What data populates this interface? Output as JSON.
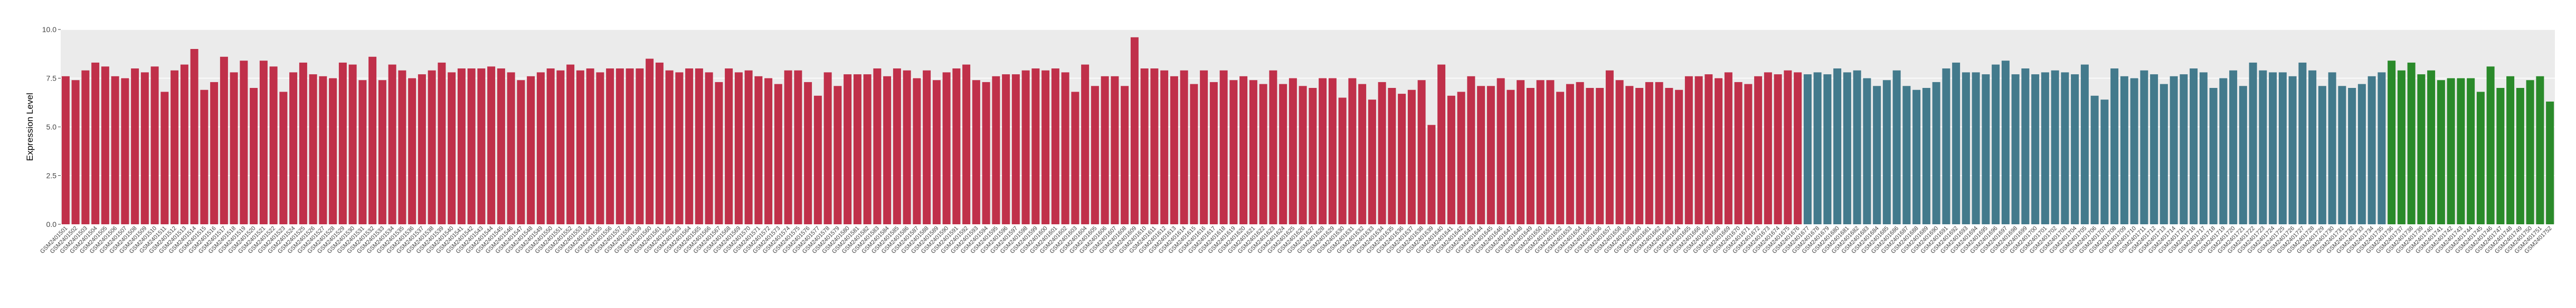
{
  "chart_data": {
    "type": "bar",
    "y_label": "Expression Level",
    "ylim": [
      0,
      10
    ],
    "yticks": [
      {
        "value": 0,
        "label": "0.0"
      },
      {
        "value": 2.5,
        "label": "2.5"
      },
      {
        "value": 5,
        "label": "5.0"
      },
      {
        "value": 7.5,
        "label": "7.5"
      },
      {
        "value": 10,
        "label": "10.0"
      }
    ],
    "grid": true,
    "groups": [
      {
        "color": "#c0304a",
        "categories": [
          "GSM2401501",
          "GSM2401502",
          "GSM2401503",
          "GSM2401504",
          "GSM2401505",
          "GSM2401506",
          "GSM2401507",
          "GSM2401508",
          "GSM2401509",
          "GSM2401510",
          "GSM2401511",
          "GSM2401512",
          "GSM2401513",
          "GSM2401514",
          "GSM2401515",
          "GSM2401516",
          "GSM2401517",
          "GSM2401518",
          "GSM2401519",
          "GSM2401520",
          "GSM2401521",
          "GSM2401522",
          "GSM2401523",
          "GSM2401524",
          "GSM2401525",
          "GSM2401526",
          "GSM2401527",
          "GSM2401528",
          "GSM2401529",
          "GSM2401530",
          "GSM2401531",
          "GSM2401532",
          "GSM2401533",
          "GSM2401534",
          "GSM2401535",
          "GSM2401536",
          "GSM2401537",
          "GSM2401538",
          "GSM2401539",
          "GSM2401540",
          "GSM2401541",
          "GSM2401542",
          "GSM2401543",
          "GSM2401544",
          "GSM2401545",
          "GSM2401546",
          "GSM2401547",
          "GSM2401548",
          "GSM2401549",
          "GSM2401550",
          "GSM2401551",
          "GSM2401552",
          "GSM2401553",
          "GSM2401554",
          "GSM2401555",
          "GSM2401556",
          "GSM2401557",
          "GSM2401558",
          "GSM2401559",
          "GSM2401560",
          "GSM2401561",
          "GSM2401562",
          "GSM2401563",
          "GSM2401564",
          "GSM2401565",
          "GSM2401566",
          "GSM2401567",
          "GSM2401568",
          "GSM2401569",
          "GSM2401570",
          "GSM2401571",
          "GSM2401572",
          "GSM2401573",
          "GSM2401574",
          "GSM2401575",
          "GSM2401576",
          "GSM2401577",
          "GSM2401578",
          "GSM2401579",
          "GSM2401580",
          "GSM2401581",
          "GSM2401582",
          "GSM2401583",
          "GSM2401584",
          "GSM2401585",
          "GSM2401586",
          "GSM2401587",
          "GSM2401588",
          "GSM2401589",
          "GSM2401590",
          "GSM2401591",
          "GSM2401592",
          "GSM2401593",
          "GSM2401594",
          "GSM2401595",
          "GSM2401596",
          "GSM2401597",
          "GSM2401598",
          "GSM2401599",
          "GSM2401600",
          "GSM2401601",
          "GSM2401602",
          "GSM2401603",
          "GSM2401604",
          "GSM2401605",
          "GSM2401606",
          "GSM2401607",
          "GSM2401608",
          "GSM2401609",
          "GSM2401610",
          "GSM2401611",
          "GSM2401612",
          "GSM2401613",
          "GSM2401614",
          "GSM2401615",
          "GSM2401616",
          "GSM2401617",
          "GSM2401618",
          "GSM2401619",
          "GSM2401620",
          "GSM2401621",
          "GSM2401622",
          "GSM2401623",
          "GSM2401624",
          "GSM2401625",
          "GSM2401626",
          "GSM2401627",
          "GSM2401628",
          "GSM2401629",
          "GSM2401630",
          "GSM2401631",
          "GSM2401632",
          "GSM2401633",
          "GSM2401634",
          "GSM2401635",
          "GSM2401636",
          "GSM2401637",
          "GSM2401638",
          "GSM2401639",
          "GSM2401640",
          "GSM2401641",
          "GSM2401642",
          "GSM2401643",
          "GSM2401644",
          "GSM2401645",
          "GSM2401646",
          "GSM2401647",
          "GSM2401648",
          "GSM2401649",
          "GSM2401650",
          "GSM2401651",
          "GSM2401652",
          "GSM2401653",
          "GSM2401654",
          "GSM2401655",
          "GSM2401656",
          "GSM2401657",
          "GSM2401658",
          "GSM2401659",
          "GSM2401660",
          "GSM2401661",
          "GSM2401662",
          "GSM2401663",
          "GSM2401664",
          "GSM2401665",
          "GSM2401666",
          "GSM2401667",
          "GSM2401668",
          "GSM2401669",
          "GSM2401670",
          "GSM2401671",
          "GSM2401672",
          "GSM2401673",
          "GSM2401674",
          "GSM2401675",
          "GSM2401676"
        ],
        "values": [
          7.6,
          7.4,
          7.9,
          8.3,
          8.1,
          7.6,
          7.5,
          8.0,
          7.8,
          8.1,
          6.8,
          7.9,
          8.2,
          9.0,
          6.9,
          7.3,
          8.6,
          7.8,
          8.4,
          7.0,
          8.4,
          8.1,
          6.8,
          7.8,
          8.3,
          7.7,
          7.6,
          7.5,
          8.3,
          8.2,
          7.4,
          8.6,
          7.4,
          8.2,
          7.9,
          7.5,
          7.7,
          7.9,
          8.3,
          7.8,
          8.0,
          8.0,
          8.0,
          8.1,
          8.0,
          7.8,
          7.4,
          7.6,
          7.8,
          8.0,
          7.9,
          8.2,
          7.9,
          8.0,
          7.8,
          8.0,
          8.0,
          8.0,
          8.0,
          8.5,
          8.3,
          7.9,
          7.8,
          8.0,
          8.0,
          7.8,
          7.3,
          8.0,
          7.8,
          7.9,
          7.6,
          7.5,
          7.2,
          7.9,
          7.9,
          7.3,
          6.6,
          7.8,
          7.1,
          7.7,
          7.7,
          7.7,
          8.0,
          7.6,
          8.0,
          7.9,
          7.5,
          7.9,
          7.4,
          7.8,
          8.0,
          8.2,
          7.4,
          7.3,
          7.6,
          7.7,
          7.7,
          7.9,
          8.0,
          7.9,
          8.0,
          7.8,
          6.8,
          8.2,
          7.1,
          7.6,
          7.6,
          7.1,
          9.6,
          8.0,
          8.0,
          7.9,
          7.6,
          7.9,
          7.2,
          7.9,
          7.3,
          7.9,
          7.4,
          7.6,
          7.4,
          7.2,
          7.9,
          7.2,
          7.5,
          7.1,
          7.0,
          7.5,
          7.5,
          6.5,
          7.5,
          7.2,
          6.4,
          7.3,
          7.0,
          6.7,
          6.9,
          7.4,
          5.1,
          8.2,
          6.6,
          6.8,
          7.6,
          7.1,
          7.1,
          7.5,
          6.9,
          7.4,
          7.0,
          7.4,
          7.4,
          6.8,
          7.2,
          7.3,
          7.0,
          7.0,
          7.9,
          7.4,
          7.1,
          7.0,
          7.3,
          7.3,
          7.0,
          6.9,
          7.6,
          7.6,
          7.7,
          7.5,
          7.8,
          7.3,
          7.2,
          7.6,
          7.8,
          7.7,
          7.9,
          7.8
        ]
      },
      {
        "color": "#437a8c",
        "categories": [
          "GSM2401677",
          "GSM2401678",
          "GSM2401679",
          "GSM2401680",
          "GSM2401681",
          "GSM2401682",
          "GSM2401683",
          "GSM2401684",
          "GSM2401685",
          "GSM2401686",
          "GSM2401687",
          "GSM2401688",
          "GSM2401689",
          "GSM2401690",
          "GSM2401691",
          "GSM2401692",
          "GSM2401693",
          "GSM2401694",
          "GSM2401695",
          "GSM2401696",
          "GSM2401697",
          "GSM2401698",
          "GSM2401699",
          "GSM2401700",
          "GSM2401701",
          "GSM2401702",
          "GSM2401703",
          "GSM2401704",
          "GSM2401705",
          "GSM2401706",
          "GSM2401707",
          "GSM2401708",
          "GSM2401709",
          "GSM2401710",
          "GSM2401711",
          "GSM2401712",
          "GSM2401713",
          "GSM2401714",
          "GSM2401715",
          "GSM2401716",
          "GSM2401717",
          "GSM2401718",
          "GSM2401719",
          "GSM2401720",
          "GSM2401721",
          "GSM2401722",
          "GSM2401723",
          "GSM2401724",
          "GSM2401725",
          "GSM2401726",
          "GSM2401727",
          "GSM2401728",
          "GSM2401729",
          "GSM2401730",
          "GSM2401731",
          "GSM2401732",
          "GSM2401733",
          "GSM2401734",
          "GSM2401735"
        ],
        "values": [
          7.7,
          7.8,
          7.7,
          8.0,
          7.8,
          7.9,
          7.5,
          7.1,
          7.4,
          7.9,
          7.1,
          6.9,
          7.0,
          7.3,
          8.0,
          8.3,
          7.8,
          7.8,
          7.7,
          8.2,
          8.4,
          7.7,
          8.0,
          7.7,
          7.8,
          7.9,
          7.8,
          7.7,
          8.2,
          6.6,
          6.4,
          8.0,
          7.6,
          7.5,
          7.9,
          7.7,
          7.2,
          7.6,
          7.7,
          8.0,
          7.8,
          7.0,
          7.5,
          7.9,
          7.1,
          8.3,
          7.9,
          7.8,
          7.8,
          7.6,
          8.3,
          7.9,
          7.1,
          7.8,
          7.1,
          7.0,
          7.2,
          7.6,
          7.8
        ]
      },
      {
        "color": "#2a8a2a",
        "categories": [
          "GSM2401736",
          "GSM2401737",
          "GSM2401738",
          "GSM2401739",
          "GSM2401740",
          "GSM2401741",
          "GSM2401742",
          "GSM2401743",
          "GSM2401744",
          "GSM2401745",
          "GSM2401746",
          "GSM2401747",
          "GSM2401748",
          "GSM2401749",
          "GSM2401750",
          "GSM2401751",
          "GSM2401752"
        ],
        "values": [
          8.4,
          7.9,
          8.3,
          7.7,
          7.9,
          7.4,
          7.5,
          7.5,
          7.5,
          6.8,
          8.1,
          7.0,
          7.6,
          7.0,
          7.4,
          7.6,
          6.3
        ]
      }
    ]
  }
}
